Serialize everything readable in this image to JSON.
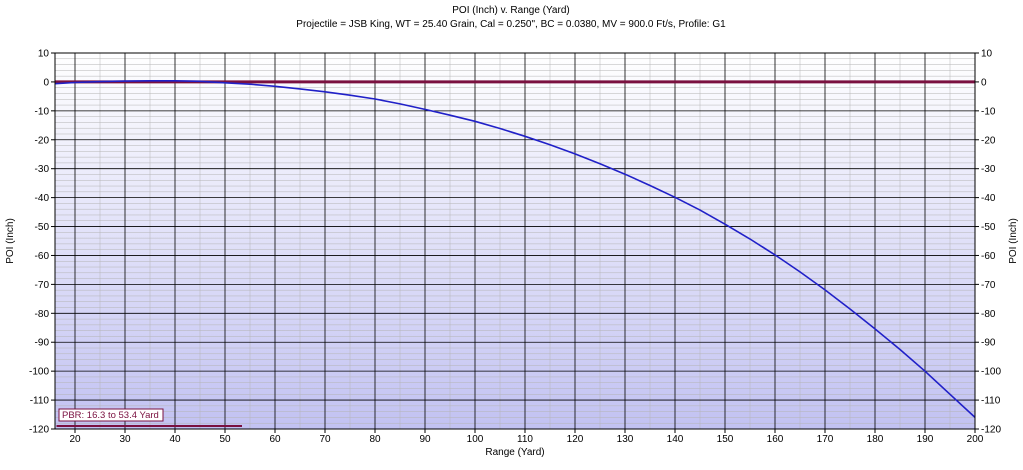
{
  "chart_data": {
    "type": "line",
    "title": "POI (Inch) v. Range (Yard)",
    "subtitle": "Projectile = JSB King, WT = 25.40 Grain, Cal = 0.250\", BC = 0.0380, MV = 900.0 Ft/s, Profile: G1",
    "xlabel": "Range (Yard)",
    "ylabel": "POI (Inch)",
    "xlim": [
      16,
      200
    ],
    "ylim": [
      -120,
      10
    ],
    "x_ticks": [
      20,
      30,
      40,
      50,
      60,
      70,
      80,
      90,
      100,
      110,
      120,
      130,
      140,
      150,
      160,
      170,
      180,
      190,
      200
    ],
    "y_ticks": [
      10,
      0,
      -10,
      -20,
      -30,
      -40,
      -50,
      -60,
      -70,
      -80,
      -90,
      -100,
      -110,
      -120
    ],
    "grid": true,
    "series": [
      {
        "color": "#2020c8",
        "x": [
          16,
          20,
          25,
          30,
          35,
          40,
          45,
          50,
          55,
          60,
          65,
          70,
          75,
          80,
          85,
          90,
          95,
          100,
          105,
          110,
          115,
          120,
          125,
          130,
          135,
          140,
          145,
          150,
          155,
          160,
          165,
          170,
          175,
          180,
          185,
          190,
          195,
          200
        ],
        "y": [
          -0.6,
          -0.2,
          0.1,
          0.3,
          0.4,
          0.4,
          0.2,
          -0.3,
          -0.8,
          -1.5,
          -2.4,
          -3.4,
          -4.6,
          -5.9,
          -7.6,
          -9.5,
          -11.5,
          -13.6,
          -16.1,
          -18.8,
          -21.7,
          -24.9,
          -28.3,
          -31.9,
          -35.8,
          -39.9,
          -44.3,
          -49.2,
          -54.3,
          -59.8,
          -65.7,
          -71.9,
          -78.5,
          -85.4,
          -92.5,
          -100.0,
          -108.0,
          -116.0
        ]
      }
    ],
    "zero_line": {
      "y": 0,
      "color": "#7a1040"
    },
    "pbr": {
      "label": "PBR: 16.3 to 53.4 Yard",
      "x_start": 16.3,
      "x_end": 53.4,
      "color": "#7a1040"
    },
    "background_gradient": [
      "#ffffff",
      "#c2c2f2"
    ]
  }
}
